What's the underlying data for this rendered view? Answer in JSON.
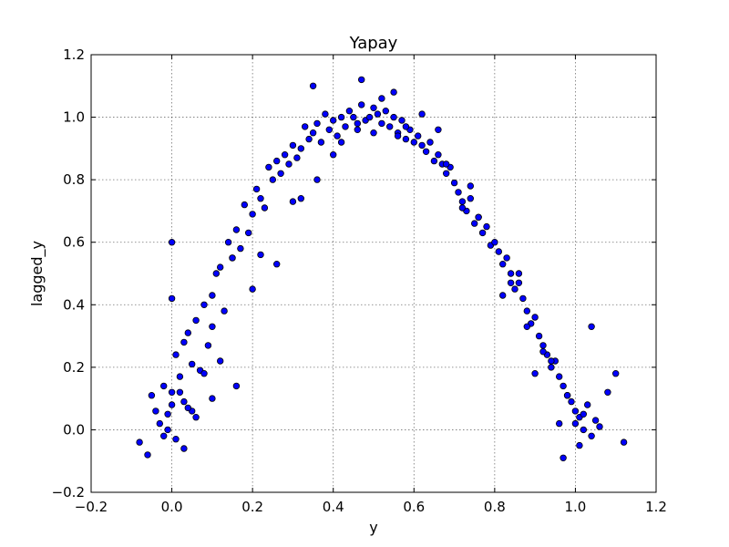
{
  "chart_data": {
    "type": "scatter",
    "title": "Yapay",
    "xlabel": "y",
    "ylabel": "lagged_y",
    "xlim": [
      -0.2,
      1.2
    ],
    "ylim": [
      -0.2,
      1.2
    ],
    "xticks": [
      -0.2,
      0.0,
      0.2,
      0.4,
      0.6,
      0.8,
      1.0,
      1.2
    ],
    "yticks": [
      -0.2,
      0.0,
      0.2,
      0.4,
      0.6,
      0.8,
      1.0,
      1.2
    ],
    "xtick_labels": [
      "−0.2",
      "0.0",
      "0.2",
      "0.4",
      "0.6",
      "0.8",
      "1.0",
      "1.2"
    ],
    "ytick_labels": [
      "−0.2",
      "0.0",
      "0.2",
      "0.4",
      "0.6",
      "0.8",
      "1.0",
      "1.2"
    ],
    "grid": true,
    "marker_color": "#0000ff",
    "marker_edge_color": "#000000",
    "x": [
      -0.08,
      -0.06,
      -0.05,
      -0.04,
      -0.03,
      -0.02,
      -0.02,
      -0.01,
      0.0,
      0.0,
      0.01,
      0.01,
      0.02,
      0.02,
      0.03,
      0.03,
      0.04,
      0.05,
      0.05,
      0.06,
      0.07,
      0.08,
      0.09,
      0.1,
      0.1,
      0.11,
      0.12,
      0.13,
      0.14,
      0.15,
      0.16,
      0.17,
      0.18,
      0.19,
      0.2,
      0.21,
      0.22,
      0.23,
      0.24,
      0.25,
      0.26,
      0.27,
      0.28,
      0.29,
      0.3,
      0.31,
      0.32,
      0.33,
      0.34,
      0.35,
      0.36,
      0.37,
      0.38,
      0.39,
      0.4,
      0.41,
      0.42,
      0.43,
      0.44,
      0.45,
      0.46,
      0.47,
      0.48,
      0.49,
      0.5,
      0.51,
      0.52,
      0.53,
      0.54,
      0.55,
      0.56,
      0.57,
      0.58,
      0.59,
      0.6,
      0.61,
      0.62,
      0.63,
      0.64,
      0.65,
      0.66,
      0.67,
      0.68,
      0.69,
      0.7,
      0.71,
      0.72,
      0.73,
      0.74,
      0.75,
      0.76,
      0.77,
      0.78,
      0.79,
      0.8,
      0.81,
      0.82,
      0.83,
      0.84,
      0.85,
      0.86,
      0.87,
      0.88,
      0.89,
      0.9,
      0.91,
      0.92,
      0.93,
      0.94,
      0.95,
      0.96,
      0.97,
      0.98,
      0.99,
      1.0,
      1.0,
      1.01,
      1.02,
      1.03,
      1.04,
      1.05,
      1.06,
      1.08,
      1.1,
      1.12,
      0.0,
      0.04,
      0.12,
      0.2,
      0.3,
      0.4,
      0.5,
      0.58,
      0.68,
      0.76,
      0.86,
      0.94,
      1.02,
      0.06,
      0.16,
      0.26,
      0.36,
      0.46,
      0.56,
      0.66,
      0.74,
      0.84,
      0.92,
      0.98,
      -0.01,
      0.08,
      0.22,
      0.32,
      0.42,
      0.52,
      0.62,
      0.72,
      0.82,
      0.9,
      0.96,
      1.04,
      0.15,
      0.35,
      0.47,
      0.55,
      0.0,
      0.97,
      1.01,
      0.88,
      0.03,
      0.1
    ],
    "y": [
      -0.04,
      -0.08,
      0.11,
      0.06,
      0.02,
      -0.02,
      0.14,
      0.05,
      0.6,
      0.08,
      0.24,
      -0.03,
      0.17,
      0.12,
      0.28,
      0.09,
      0.31,
      0.21,
      0.06,
      0.35,
      0.19,
      0.4,
      0.27,
      0.43,
      0.33,
      0.5,
      0.52,
      0.38,
      0.6,
      0.55,
      0.64,
      0.58,
      0.72,
      0.63,
      0.69,
      0.77,
      0.74,
      0.71,
      0.84,
      0.8,
      0.86,
      0.82,
      0.88,
      0.85,
      0.91,
      0.87,
      0.9,
      0.97,
      0.93,
      0.95,
      0.98,
      0.92,
      1.01,
      0.96,
      0.99,
      0.94,
      1.0,
      0.97,
      1.02,
      1.0,
      0.96,
      1.04,
      0.99,
      1.0,
      1.03,
      1.01,
      0.98,
      1.02,
      0.97,
      1.0,
      0.95,
      0.99,
      0.93,
      0.96,
      0.92,
      0.94,
      0.91,
      0.89,
      0.92,
      0.86,
      0.88,
      0.85,
      0.82,
      0.84,
      0.79,
      0.76,
      0.73,
      0.7,
      0.74,
      0.66,
      0.68,
      0.63,
      0.65,
      0.59,
      0.6,
      0.57,
      0.53,
      0.55,
      0.5,
      0.45,
      0.47,
      0.42,
      0.38,
      0.34,
      0.36,
      0.3,
      0.27,
      0.24,
      0.2,
      0.22,
      0.17,
      0.14,
      0.11,
      0.09,
      0.06,
      0.02,
      0.04,
      0.0,
      0.08,
      -0.02,
      0.03,
      0.01,
      0.12,
      0.18,
      -0.04,
      0.12,
      0.07,
      0.22,
      0.45,
      0.73,
      0.88,
      0.95,
      0.97,
      0.85,
      0.68,
      0.5,
      0.22,
      0.05,
      0.04,
      0.14,
      0.53,
      0.8,
      0.98,
      0.94,
      0.96,
      0.78,
      0.47,
      0.25,
      0.11,
      0.0,
      0.18,
      0.56,
      0.74,
      0.92,
      1.06,
      1.01,
      0.71,
      0.43,
      0.18,
      0.02,
      0.33,
      0.55,
      1.1,
      1.12,
      1.08,
      0.42,
      -0.09,
      -0.05,
      0.33,
      -0.06,
      0.1
    ]
  }
}
